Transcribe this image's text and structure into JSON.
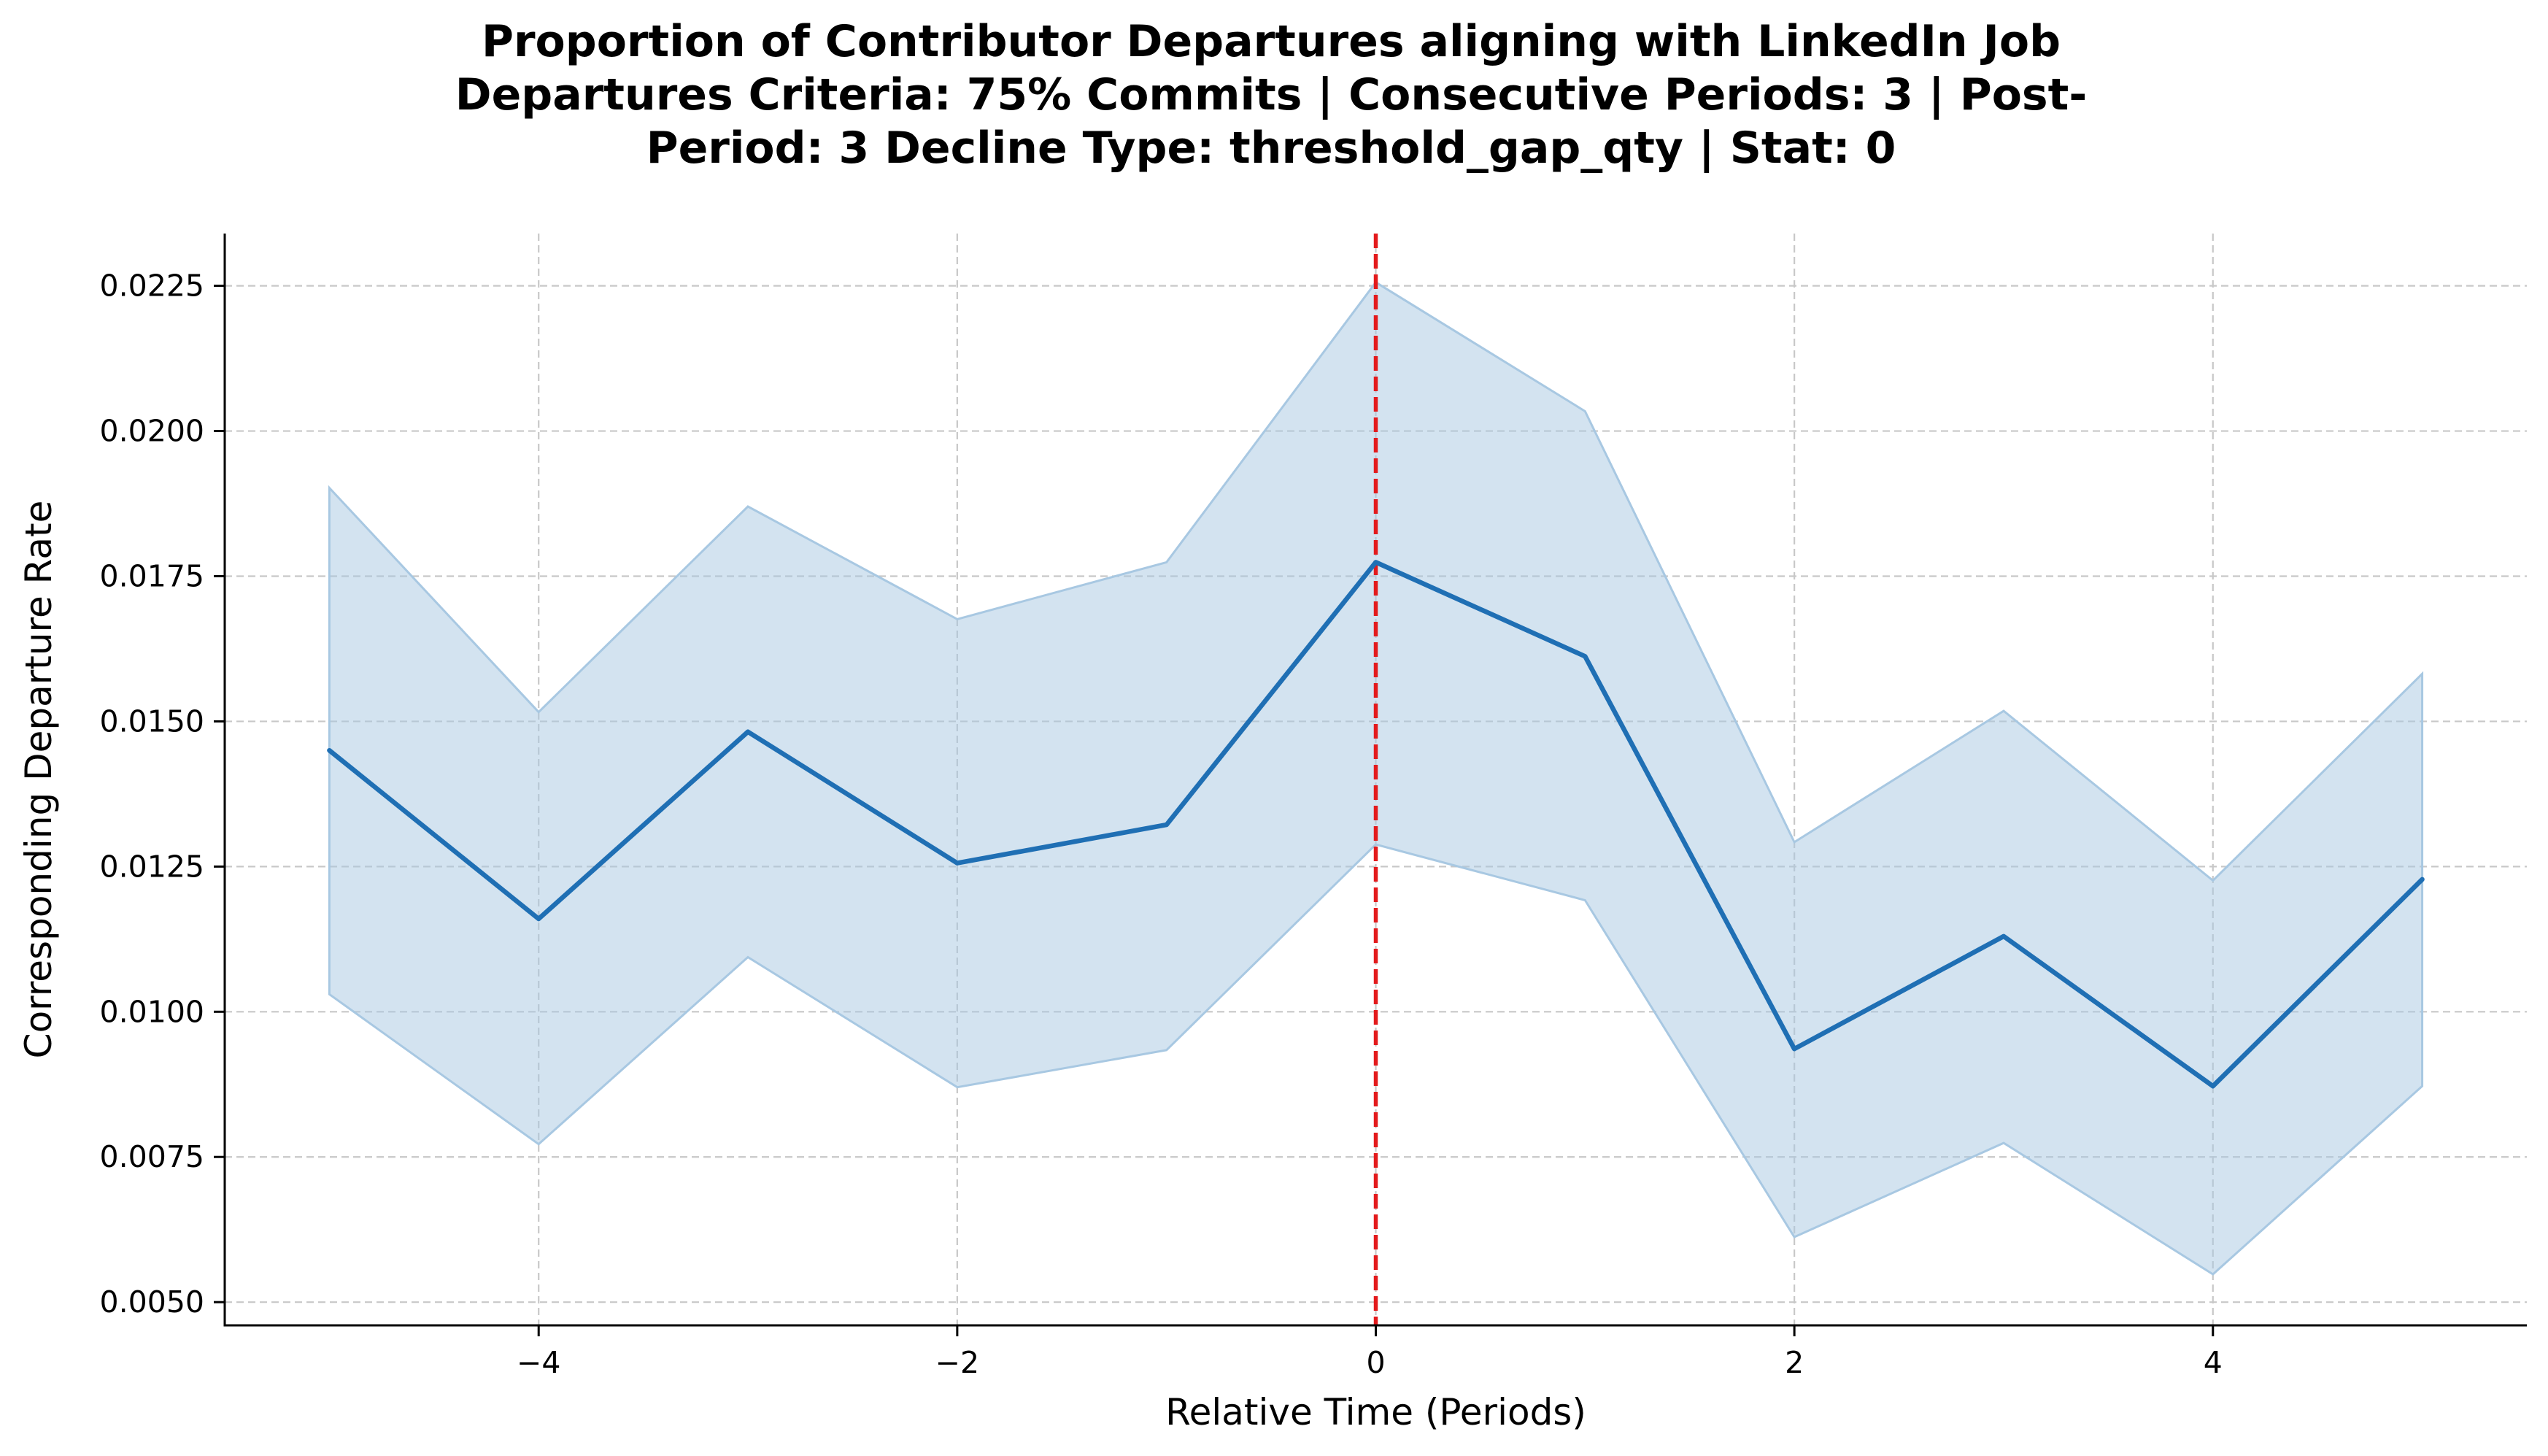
{
  "chart_data": {
    "type": "line",
    "title_lines": [
      "Proportion of Contributor Departures aligning with LinkedIn Job",
      "Departures Criteria: 75% Commits | Consecutive Periods: 3 | Post-",
      "Period: 3 Decline Type: threshold_gap_qty | Stat: 0"
    ],
    "xlabel": "Relative Time (Periods)",
    "ylabel": "Corresponding Departure Rate",
    "xlim": [
      -5.5,
      5.5
    ],
    "ylim": [
      0.0046,
      0.0234
    ],
    "x_ticks": [
      -4,
      -2,
      0,
      2,
      4
    ],
    "x_tick_labels": [
      "−4",
      "−2",
      "0",
      "2",
      "4"
    ],
    "y_ticks": [
      0.005,
      0.0075,
      0.01,
      0.0125,
      0.015,
      0.0175,
      0.02,
      0.0225
    ],
    "y_tick_labels": [
      "0.0050",
      "0.0075",
      "0.0100",
      "0.0125",
      "0.0150",
      "0.0175",
      "0.0200",
      "0.0225"
    ],
    "grid": true,
    "vline": {
      "x": 0,
      "color": "#e31a1c",
      "style": "dashed"
    },
    "series": [
      {
        "color": "#1f6fb4",
        "x": [
          -5,
          -4,
          -3,
          -2,
          -1,
          0,
          1,
          2,
          3,
          4,
          5
        ],
        "y": [
          0.0145,
          0.0116,
          0.01482,
          0.01256,
          0.01322,
          0.01774,
          0.01612,
          0.00936,
          0.0113,
          0.00872,
          0.01228
        ],
        "ci_lower": [
          0.0103,
          0.00772,
          0.01094,
          0.0087,
          0.00934,
          0.01288,
          0.01192,
          0.00612,
          0.00774,
          0.00548,
          0.00872
        ],
        "ci_upper": [
          0.01902,
          0.01516,
          0.0187,
          0.01676,
          0.01774,
          0.02256,
          0.02034,
          0.01292,
          0.01518,
          0.01226,
          0.01582
        ],
        "band_color": "#a8c8e2"
      }
    ]
  }
}
